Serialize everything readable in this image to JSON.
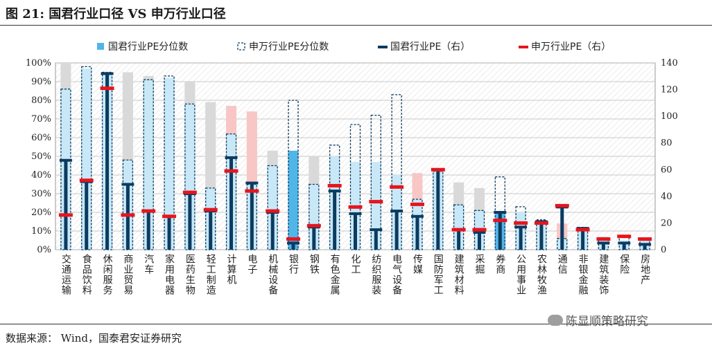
{
  "figure": {
    "title": "图 21:  国君行业口径 VS 申万行业口径",
    "source": "数据来源：  Wind，国泰君安证券研究",
    "watermark": "陈显顺策略研究"
  },
  "colors": {
    "gtja_pct_light": "#c9e8f7",
    "gtja_pct_solid": "#52b5e8",
    "sw_pct_border": "#0b3b60",
    "sw_pct_fill_gray": "#d9d9d9",
    "sw_pct_fill_pink": "#f9c6c6",
    "gtja_pe": "#0b3b60",
    "sw_pe": "#e8141c",
    "grid": "#b7b7b7"
  },
  "chart_data": {
    "type": "bar",
    "title": "",
    "categories": [
      "交通运输",
      "食品饮料",
      "休闲服务",
      "商业贸易",
      "汽车",
      "家用电器",
      "医药生物",
      "轻工制造",
      "计算机",
      "电子",
      "机械设备",
      "银行",
      "钢铁",
      "有色金属",
      "化工",
      "纺织服装",
      "电气设备",
      "传媒",
      "国防军工",
      "建筑材料",
      "采掘",
      "券商",
      "公用事业",
      "农林牧渔",
      "通信",
      "非银金融",
      "建筑装饰",
      "保险",
      "房地产"
    ],
    "series": [
      {
        "name": "国君行业PE分位数",
        "axis": "left",
        "unit": "%",
        "values": [
          100,
          97,
          94,
          95,
          93,
          92,
          90,
          79,
          77,
          74,
          53,
          53,
          50,
          50,
          47,
          47,
          40,
          41,
          42,
          36,
          33,
          20,
          20,
          15,
          14,
          12,
          7,
          5,
          5
        ]
      },
      {
        "name": "申万行业PE分位数",
        "axis": "left",
        "unit": "%",
        "values": [
          86,
          98,
          95,
          48,
          91,
          93,
          78,
          33,
          62,
          35,
          45,
          80,
          35,
          56,
          67,
          72,
          83,
          27,
          42,
          24,
          21,
          39,
          23,
          16,
          6,
          12,
          6,
          7,
          5
        ]
      },
      {
        "name": "国君行业PE（右）",
        "axis": "right",
        "values": [
          67,
          51,
          132,
          49,
          29,
          25,
          42,
          29,
          69,
          50,
          28,
          5,
          17,
          44,
          27,
          15,
          29,
          25,
          60,
          15,
          13,
          28,
          17,
          21,
          32,
          16,
          5,
          5,
          4
        ]
      },
      {
        "name": "申万行业PE（右）",
        "axis": "right",
        "values": [
          26,
          52,
          121,
          26,
          29,
          25,
          43,
          30,
          59,
          44,
          29,
          8,
          18,
          48,
          32,
          36,
          47,
          34,
          60,
          15,
          15,
          22,
          20,
          20,
          33,
          15,
          8,
          10,
          8
        ]
      }
    ],
    "y_left": {
      "ticks": [
        "0%",
        "10%",
        "20%",
        "30%",
        "40%",
        "50%",
        "60%",
        "70%",
        "80%",
        "90%",
        "100%"
      ],
      "ylim": [
        0,
        100
      ]
    },
    "y_right": {
      "ticks": [
        "0",
        "20",
        "40",
        "60",
        "80",
        "100",
        "120",
        "140"
      ],
      "ylim": [
        0,
        140
      ]
    },
    "grid": true,
    "legend_position": "top"
  }
}
